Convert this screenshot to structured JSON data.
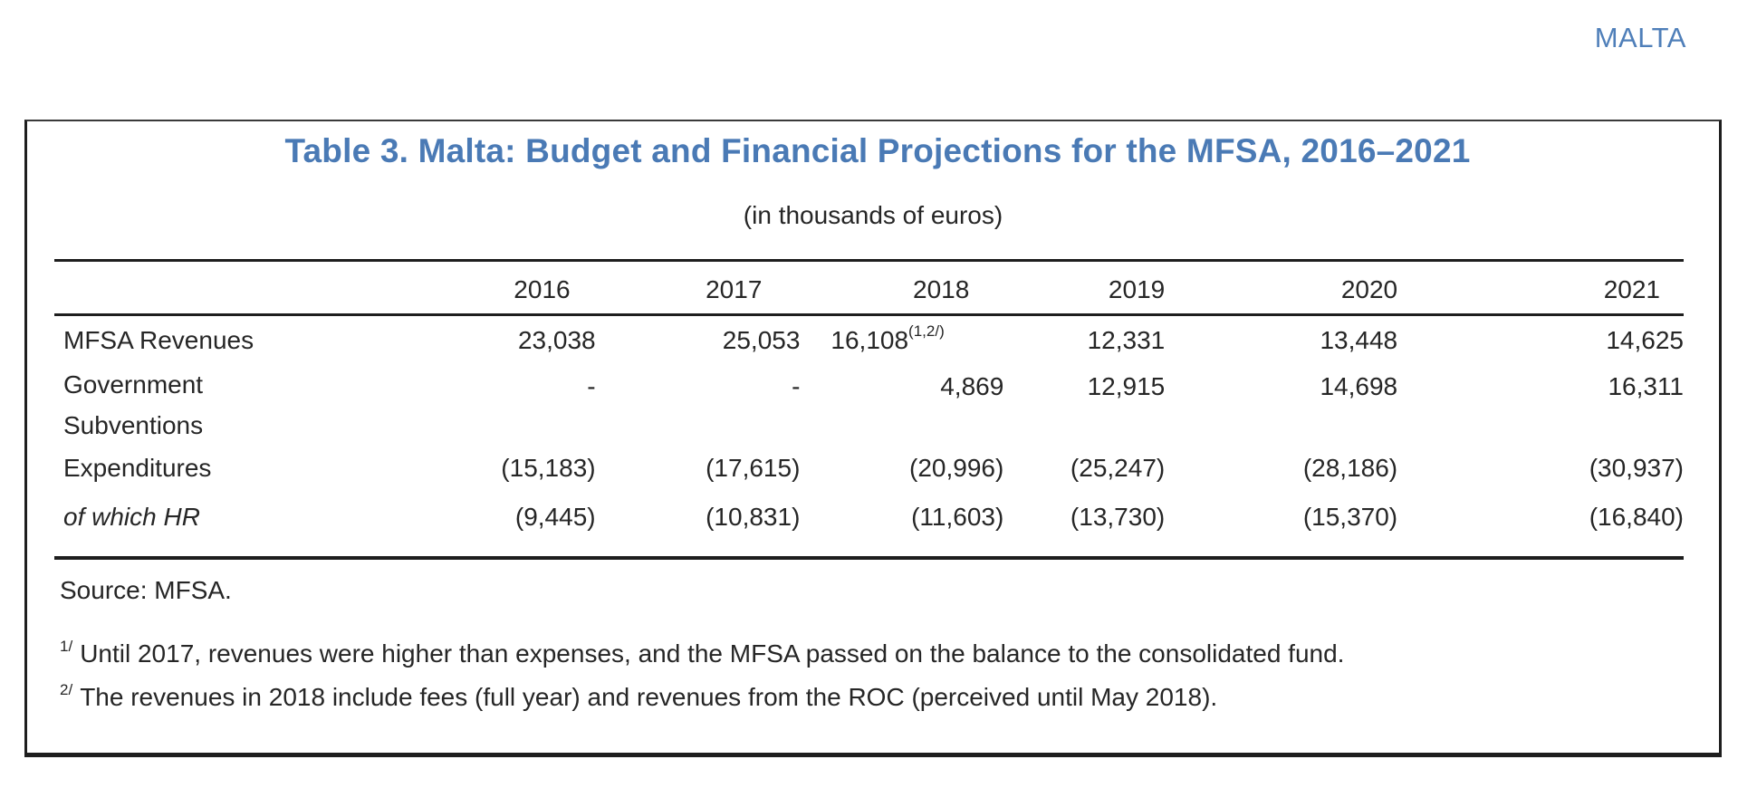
{
  "running_head": "MALTA",
  "table": {
    "title": "Table 3. Malta: Budget and Financial Projections for the MFSA, 2016–2021",
    "subtitle": "(in thousands of euros)",
    "columns": [
      "2016",
      "2017",
      "2018",
      "2019",
      "2020",
      "2021"
    ],
    "rows": [
      {
        "label": "MFSA Revenues",
        "label_lines": [
          "MFSA Revenues"
        ],
        "italic": false,
        "values": [
          "23,038",
          "25,053",
          "16,108",
          "12,331",
          "13,448",
          "14,625"
        ],
        "footnote_ref_2018": "(1,2/)"
      },
      {
        "label": "Government Subventions",
        "label_lines": [
          "Government",
          "Subventions"
        ],
        "italic": false,
        "values": [
          "-",
          "-",
          "4,869",
          "12,915",
          "14,698",
          "16,311"
        ]
      },
      {
        "label": "Expenditures",
        "label_lines": [
          "Expenditures"
        ],
        "italic": false,
        "values": [
          "(15,183)",
          "(17,615)",
          "(20,996)",
          "(25,247)",
          "(28,186)",
          "(30,937)"
        ]
      },
      {
        "label": "of which HR",
        "label_lines": [
          "of which HR"
        ],
        "italic": true,
        "values": [
          "(9,445)",
          "(10,831)",
          "(11,603)",
          "(13,730)",
          "(15,370)",
          "(16,840)"
        ]
      }
    ],
    "source": "Source: MFSA.",
    "footnotes": [
      {
        "mark": "1/",
        "text": "Until 2017,  revenues were higher than expenses, and the MFSA passed on the balance to the consolidated fund."
      },
      {
        "mark": "2/",
        "text": "The revenues in 2018  include fees (full year) and revenues from the ROC (perceived until May 2018)."
      }
    ]
  },
  "colors": {
    "accent_title": "#4a7ab5",
    "running_head": "#4f7fb9",
    "text": "#262626",
    "rules": "#1e1e1e"
  }
}
